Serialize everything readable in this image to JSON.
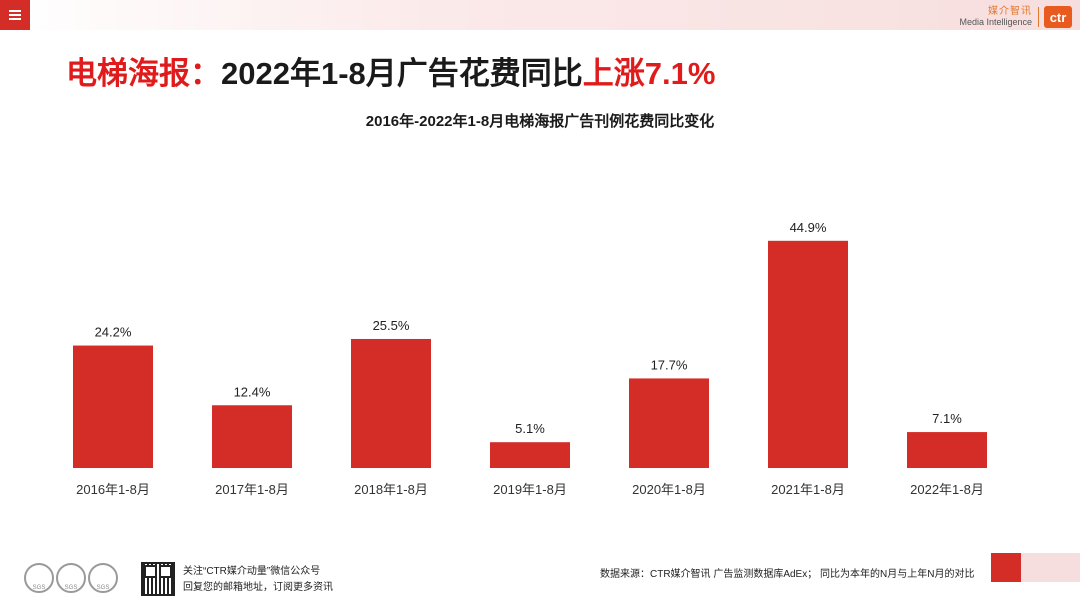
{
  "header": {
    "menu_icon": "hamburger-menu-icon",
    "logo_cn": "媒介智讯",
    "logo_en": "Media Intelligence",
    "logo_mark": "ctr"
  },
  "headline": {
    "part1": "电梯海报：",
    "part2": "2022年1-8月广告花费同比",
    "part3": "上涨7.1%"
  },
  "chart_data": {
    "type": "bar",
    "title": "2016年-2022年1-8月电梯海报广告刊例花费同比变化",
    "categories": [
      "2016年1-8月",
      "2017年1-8月",
      "2018年1-8月",
      "2019年1-8月",
      "2020年1-8月",
      "2021年1-8月",
      "2022年1-8月"
    ],
    "values": [
      24.2,
      12.4,
      25.5,
      5.1,
      17.7,
      44.9,
      7.1
    ],
    "value_labels": [
      "24.2%",
      "12.4%",
      "25.5%",
      "5.1%",
      "17.7%",
      "44.9%",
      "7.1%"
    ],
    "xlabel": "",
    "ylabel": "",
    "ylim": [
      0,
      50
    ],
    "grid": false,
    "bar_color": "#d42d27"
  },
  "footer": {
    "follow_line": "关注“CTR媒介动量”微信公众号",
    "reply_line": "回复您的邮箱地址，订阅更多资讯",
    "source": "数据来源：CTR媒介智讯 广告监测数据库AdEx； 同比为本年的N月与上年N月的对比"
  }
}
